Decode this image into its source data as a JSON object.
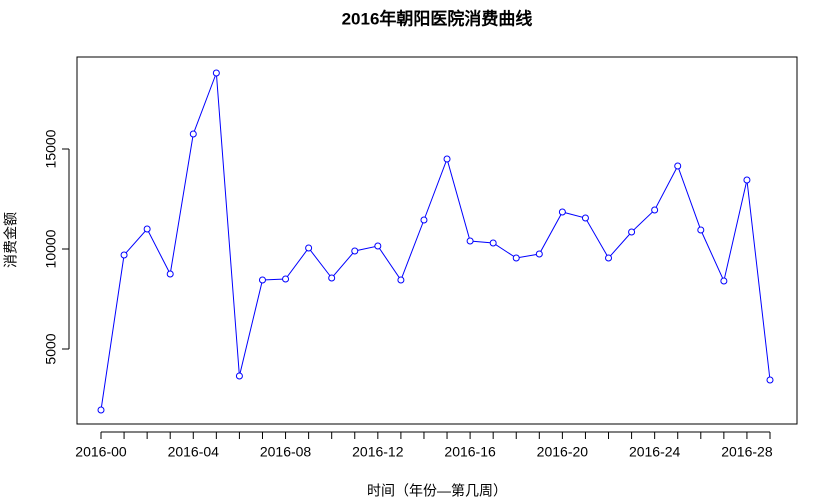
{
  "chart_data": {
    "type": "line",
    "title": "2016年朝阳医院消费曲线",
    "x_label": "时间（年份—第几周）",
    "y_label": "消费金额",
    "categories": [
      "2016-00",
      null,
      null,
      null,
      "2016-04",
      null,
      null,
      null,
      "2016-08",
      null,
      null,
      null,
      "2016-12",
      null,
      null,
      null,
      "2016-16",
      null,
      null,
      null,
      "2016-20",
      null,
      null,
      null,
      "2016-24",
      null,
      null,
      null,
      "2016-28",
      null
    ],
    "series": [
      {
        "name": "消费金额",
        "color": "#0000ff",
        "values": [
          1950,
          9700,
          11000,
          8750,
          15750,
          18800,
          3650,
          8450,
          8500,
          10050,
          8550,
          9900,
          10150,
          8450,
          11450,
          14500,
          10400,
          10300,
          9550,
          9750,
          11850,
          11550,
          9550,
          10850,
          11950,
          14150,
          10950,
          8400,
          13450,
          3450
        ]
      }
    ],
    "ylim": [
      1250,
      19600
    ],
    "yticks": [
      5000,
      10000,
      15000
    ],
    "grid": false
  }
}
